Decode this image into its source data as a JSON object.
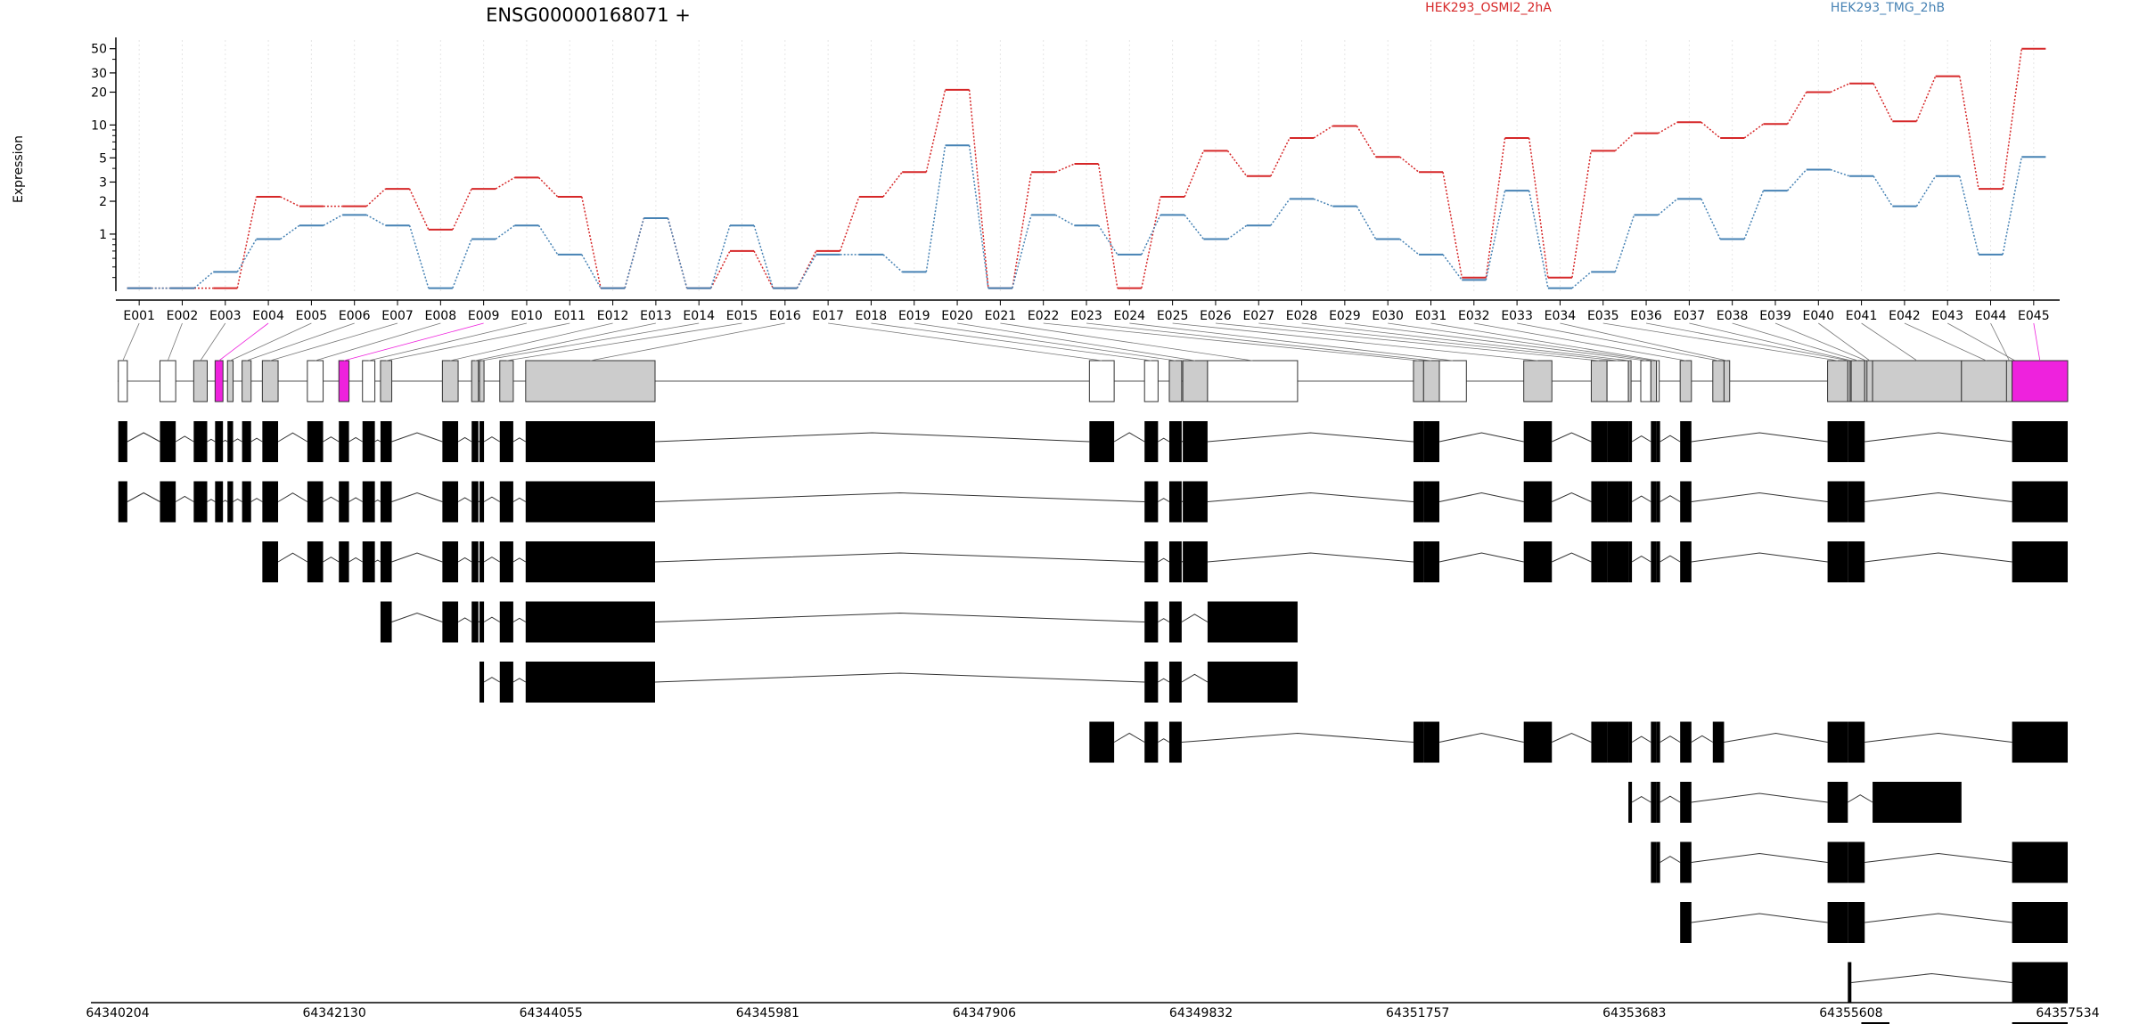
{
  "chart_data": {
    "type": "line",
    "title": "ENSG00000168071 +",
    "ylabel": "Expression",
    "yscale": "log",
    "ylim": [
      0.3,
      60
    ],
    "yticks": [
      1,
      2,
      3,
      5,
      10,
      20,
      30,
      50
    ],
    "categories": [
      "E001",
      "E002",
      "E003",
      "E004",
      "E005",
      "E006",
      "E007",
      "E008",
      "E009",
      "E010",
      "E011",
      "E012",
      "E013",
      "E014",
      "E015",
      "E016",
      "E017",
      "E018",
      "E019",
      "E020",
      "E021",
      "E022",
      "E023",
      "E024",
      "E025",
      "E026",
      "E027",
      "E028",
      "E029",
      "E030",
      "E031",
      "E032",
      "E033",
      "E034",
      "E035",
      "E036",
      "E037",
      "E038",
      "E039",
      "E040",
      "E041",
      "E042",
      "E043",
      "E044",
      "E045"
    ],
    "series": [
      {
        "name": "HEK293_OSMI2_2hA",
        "color": "#d62728",
        "values": [
          0.32,
          0.32,
          0.32,
          2.2,
          1.8,
          1.8,
          2.6,
          1.1,
          2.6,
          3.3,
          2.2,
          0.32,
          1.4,
          0.32,
          0.7,
          0.32,
          0.7,
          2.2,
          3.7,
          21,
          0.32,
          3.7,
          4.4,
          0.32,
          2.2,
          5.8,
          3.4,
          7.6,
          9.8,
          5.1,
          3.7,
          0.4,
          7.6,
          0.4,
          5.8,
          8.4,
          10.6,
          7.6,
          10.2,
          20,
          24,
          10.8,
          28,
          2.6,
          50
        ]
      },
      {
        "name": "HEK293_TMG_2hB",
        "color": "#4682b4",
        "values": [
          0.32,
          0.32,
          0.45,
          0.9,
          1.2,
          1.5,
          1.2,
          0.32,
          0.9,
          1.2,
          0.65,
          0.32,
          1.4,
          0.32,
          1.2,
          0.32,
          0.65,
          0.65,
          0.45,
          6.5,
          0.32,
          1.5,
          1.2,
          0.65,
          1.5,
          0.9,
          1.2,
          2.1,
          1.8,
          0.9,
          0.65,
          0.38,
          2.5,
          0.32,
          0.45,
          1.5,
          2.1,
          0.9,
          2.5,
          3.9,
          3.4,
          1.8,
          3.4,
          0.65,
          5.1
        ]
      }
    ],
    "legend_position": "top",
    "genomic_axis": {
      "tick_labels": [
        "64340204",
        "64342130",
        "64344055",
        "64345981",
        "64347906",
        "64349832",
        "64351757",
        "64353683",
        "64355608",
        "64357534"
      ]
    },
    "gene_model": {
      "highlight_color": "#ee22dd",
      "highlighted_exons": [
        "E004",
        "E009",
        "E045"
      ]
    },
    "transcripts_count": 10
  }
}
